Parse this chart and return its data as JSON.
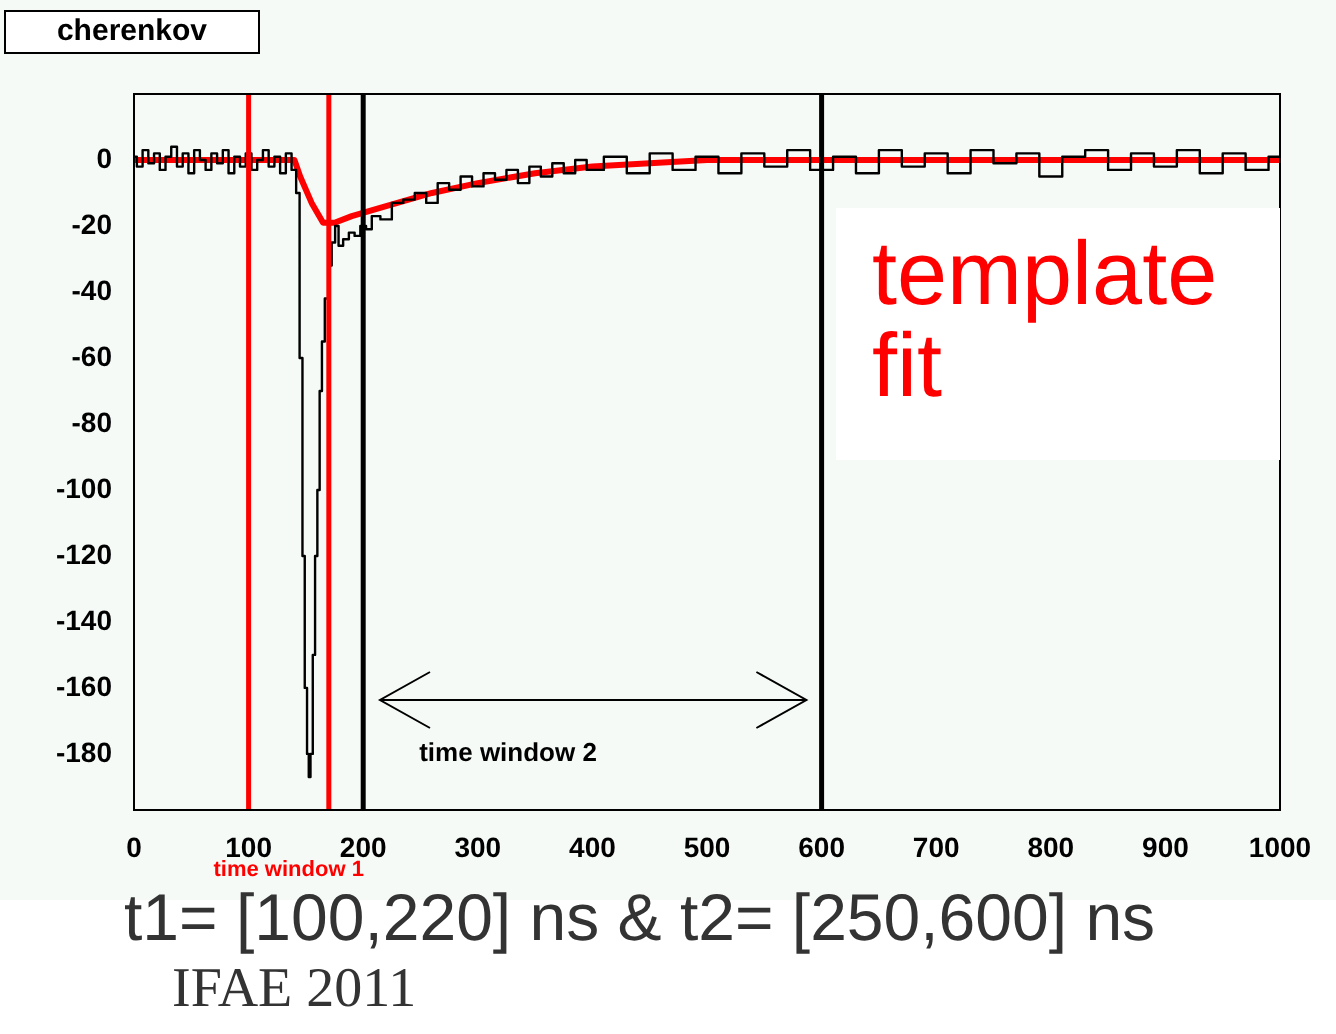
{
  "chart_data": {
    "type": "step",
    "title": "cherenkov",
    "series": [
      {
        "color": "#000000",
        "x": [
          0,
          5,
          10,
          15,
          20,
          25,
          30,
          35,
          40,
          45,
          50,
          55,
          60,
          65,
          70,
          75,
          80,
          85,
          90,
          95,
          100,
          105,
          110,
          115,
          120,
          125,
          130,
          135,
          140,
          143,
          146,
          148,
          150,
          152,
          153,
          155,
          157,
          159,
          161,
          163,
          165,
          168,
          171,
          174,
          177,
          180,
          185,
          190,
          195,
          200,
          205,
          210,
          220,
          230,
          240,
          250,
          260,
          270,
          280,
          290,
          300,
          310,
          320,
          330,
          340,
          350,
          360,
          370,
          380,
          390,
          400,
          420,
          440,
          460,
          480,
          500,
          520,
          540,
          560,
          580,
          600,
          620,
          640,
          660,
          680,
          700,
          720,
          740,
          760,
          780,
          800,
          820,
          840,
          860,
          880,
          900,
          920,
          940,
          960,
          980,
          1000
        ],
        "values": [
          1,
          -2,
          3,
          -1,
          2,
          -3,
          1,
          4,
          -2,
          2,
          -4,
          3,
          0,
          -3,
          2,
          -1,
          3,
          -4,
          1,
          -2,
          2,
          -3,
          0,
          3,
          -2,
          1,
          -4,
          2,
          -3,
          -10,
          -60,
          -120,
          -160,
          -180,
          -187,
          -180,
          -150,
          -120,
          -100,
          -70,
          -55,
          -42,
          -32,
          -25,
          -20,
          -26,
          -24,
          -22,
          -23,
          -20,
          -21,
          -17,
          -18,
          -13,
          -12,
          -10,
          -13,
          -7,
          -9,
          -5,
          -8,
          -4,
          -6,
          -3,
          -7,
          -2,
          -5,
          -1,
          -4,
          0,
          -3,
          1,
          -4,
          2,
          -3,
          1,
          -4,
          2,
          -2,
          3,
          -3,
          1,
          -4,
          3,
          -2,
          2,
          -4,
          3,
          -1,
          2,
          -5,
          1,
          3,
          -3,
          2,
          -2,
          3,
          -4,
          2,
          -3,
          1
        ]
      },
      {
        "type": "line",
        "color": "#ff0000",
        "x": [
          0,
          140,
          145,
          155,
          165,
          175,
          190,
          220,
          260,
          300,
          350,
          400,
          450,
          500,
          1000
        ],
        "values": [
          0,
          0,
          -5,
          -13,
          -19,
          -19,
          -17,
          -14,
          -10,
          -7,
          -4,
          -2,
          -1,
          0,
          0
        ]
      }
    ],
    "xlim": [
      0,
      1000
    ],
    "xticks": [
      0,
      100,
      200,
      300,
      400,
      500,
      600,
      700,
      800,
      900,
      1000
    ],
    "ylim": [
      -197,
      20
    ],
    "yticks": [
      0,
      -20,
      -40,
      -60,
      -80,
      -100,
      -120,
      -140,
      -160,
      -180
    ],
    "grid": false,
    "legend": false,
    "ref_lines": [
      {
        "axis": "x",
        "value": 100,
        "color": "#ff0000"
      },
      {
        "axis": "x",
        "value": 170,
        "color": "#ff0000"
      },
      {
        "axis": "x",
        "value": 200,
        "color": "#000000"
      },
      {
        "axis": "x",
        "value": 600,
        "color": "#000000"
      }
    ],
    "annotations": [
      "time window 1",
      "time window 2",
      "template fit",
      "t1= [100,220] ns & t2= [250,600] ns",
      "IFAE 2011"
    ]
  }
}
